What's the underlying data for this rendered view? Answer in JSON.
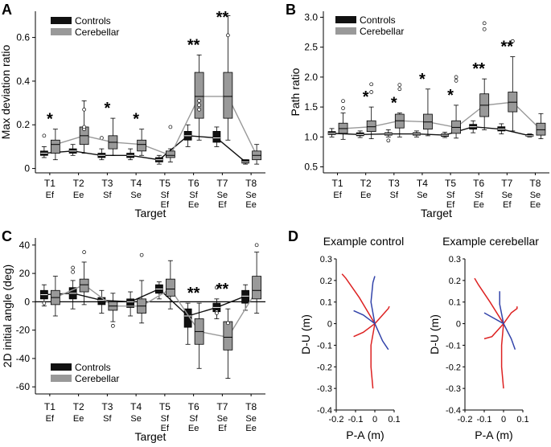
{
  "colors": {
    "controls": "#111111",
    "cerebellar": "#999999",
    "red": "#dd2222",
    "blue": "#3344aa"
  },
  "panels": {
    "A": "A",
    "B": "B",
    "C": "C",
    "D": "D"
  },
  "x_axis": {
    "label": "Target",
    "targets": [
      {
        "name": "T1",
        "lines": [
          "Ef"
        ]
      },
      {
        "name": "T2",
        "lines": [
          "Ee"
        ]
      },
      {
        "name": "T3",
        "lines": [
          "Sf"
        ]
      },
      {
        "name": "T4",
        "lines": [
          "Se"
        ]
      },
      {
        "name": "T5",
        "lines": [
          "Sf",
          "Ef"
        ]
      },
      {
        "name": "T6",
        "lines": [
          "Sf",
          "Ee"
        ]
      },
      {
        "name": "T7",
        "lines": [
          "Se",
          "Ef"
        ]
      },
      {
        "name": "T8",
        "lines": [
          "Se",
          "Ee"
        ]
      }
    ]
  },
  "legend": {
    "controls": "Controls",
    "cerebellar": "Cerebellar"
  },
  "chart_data": [
    {
      "panel": "A",
      "type": "box",
      "ylabel": "Max deviation ratio",
      "xlabel": "Target",
      "ylim": [
        -0.02,
        0.72
      ],
      "yticks": [
        0,
        0.2,
        0.4,
        0.6
      ],
      "ytick_labels": [
        "0",
        "0.2",
        "0.4",
        "0.6"
      ],
      "significance": [
        "*",
        "",
        "*",
        "*",
        "",
        "**",
        "**",
        ""
      ],
      "series": [
        {
          "name": "Controls",
          "medians": [
            0.07,
            0.08,
            0.06,
            0.06,
            0.04,
            0.15,
            0.14,
            0.03
          ],
          "q1": [
            0.06,
            0.07,
            0.05,
            0.05,
            0.03,
            0.13,
            0.12,
            0.025
          ],
          "q3": [
            0.08,
            0.09,
            0.07,
            0.07,
            0.05,
            0.17,
            0.17,
            0.04
          ],
          "wlo": [
            0.05,
            0.06,
            0.04,
            0.04,
            0.02,
            0.1,
            0.1,
            0.02
          ],
          "whi": [
            0.1,
            0.11,
            0.09,
            0.09,
            0.06,
            0.2,
            0.19,
            0.04
          ],
          "outliers": [
            [
              0.15
            ],
            [],
            [
              0.14
            ],
            [],
            [],
            [],
            [],
            []
          ]
        },
        {
          "name": "Cerebellar",
          "medians": [
            0.11,
            0.15,
            0.12,
            0.11,
            0.06,
            0.33,
            0.33,
            0.06
          ],
          "q1": [
            0.07,
            0.11,
            0.09,
            0.08,
            0.05,
            0.23,
            0.23,
            0.04
          ],
          "q3": [
            0.13,
            0.19,
            0.15,
            0.13,
            0.08,
            0.44,
            0.44,
            0.08
          ],
          "wlo": [
            0.04,
            0.07,
            0.06,
            0.06,
            0.03,
            0.13,
            0.13,
            0.02
          ],
          "whi": [
            0.18,
            0.31,
            0.23,
            0.18,
            0.09,
            0.52,
            0.7,
            0.11
          ],
          "outliers": [
            [],
            [
              0.27,
              0.18,
              0.19
            ],
            [],
            [],
            [
              0.19
            ],
            [
              0.29,
              0.31,
              0.27
            ],
            [
              0.61
            ],
            []
          ]
        }
      ]
    },
    {
      "panel": "B",
      "type": "box",
      "ylabel": "Path ratio",
      "xlabel": "Target",
      "ylim": [
        0.4,
        3.1
      ],
      "yticks": [
        0.5,
        1.0,
        1.5,
        2.0,
        2.5,
        3.0
      ],
      "ytick_labels": [
        "0.5",
        "1.0",
        "1.5",
        "2.0",
        "2.5",
        "3.0"
      ],
      "significance": [
        "",
        "*",
        "*",
        "*",
        "*",
        "**",
        "**",
        ""
      ],
      "series": [
        {
          "name": "Controls",
          "medians": [
            1.06,
            1.04,
            1.05,
            1.05,
            1.03,
            1.17,
            1.13,
            1.02
          ],
          "q1": [
            1.04,
            1.02,
            1.03,
            1.03,
            1.01,
            1.13,
            1.1,
            1.01
          ],
          "q3": [
            1.09,
            1.07,
            1.07,
            1.07,
            1.05,
            1.21,
            1.17,
            1.04
          ],
          "wlo": [
            1.0,
            0.99,
            1.0,
            1.0,
            0.99,
            1.07,
            1.05,
            1.0
          ],
          "whi": [
            1.14,
            1.1,
            1.12,
            1.1,
            1.08,
            1.27,
            1.22,
            1.05
          ],
          "outliers": [
            [],
            [],
            [
              0.94
            ],
            [],
            [],
            [],
            [],
            []
          ]
        },
        {
          "name": "Cerebellar",
          "medians": [
            1.14,
            1.17,
            1.27,
            1.25,
            1.16,
            1.53,
            1.58,
            1.12
          ],
          "q1": [
            1.06,
            1.09,
            1.15,
            1.13,
            1.06,
            1.34,
            1.42,
            1.03
          ],
          "q3": [
            1.23,
            1.27,
            1.38,
            1.38,
            1.27,
            1.72,
            1.75,
            1.23
          ],
          "wlo": [
            0.96,
            0.97,
            1.0,
            1.02,
            0.98,
            1.12,
            1.1,
            0.97
          ],
          "whi": [
            1.4,
            1.5,
            1.4,
            1.8,
            1.53,
            1.97,
            2.34,
            1.39
          ],
          "outliers": [
            [
              1.48,
              1.6
            ],
            [
              1.75,
              1.88
            ],
            [
              1.8,
              1.87
            ],
            [],
            [
              1.94,
              2.0
            ],
            [
              2.8,
              2.9
            ],
            [
              2.6
            ],
            []
          ]
        }
      ]
    },
    {
      "panel": "C",
      "type": "box",
      "ylabel": "2D initial angle (deg)",
      "xlabel": "Target",
      "ylim": [
        -65,
        45
      ],
      "yticks": [
        40,
        20,
        0,
        -20,
        -40,
        -60
      ],
      "ytick_labels": [
        "40",
        "20",
        "0",
        "-20",
        "-40",
        "-60"
      ],
      "significance": [
        "",
        "",
        "",
        "",
        "",
        "**",
        "**",
        ""
      ],
      "series": [
        {
          "name": "Controls",
          "medians": [
            5,
            6,
            1,
            0,
            9,
            -10,
            -4,
            4
          ],
          "q1": [
            2,
            2,
            -2,
            -4,
            6,
            -18,
            -7,
            -1
          ],
          "q3": [
            8,
            10,
            3,
            2,
            12,
            -5,
            -1,
            8
          ],
          "wlo": [
            -3,
            -5,
            -8,
            -10,
            2,
            -30,
            -12,
            -6
          ],
          "whi": [
            12,
            15,
            8,
            7,
            14,
            -1,
            2,
            12
          ],
          "outliers": [
            [
              -1
            ],
            [
              21,
              24
            ],
            [],
            [],
            [],
            [],
            [
              10,
              -7,
              -8
            ],
            []
          ]
        },
        {
          "name": "Cerebellar",
          "medians": [
            3,
            12,
            -3,
            -3,
            9,
            -21,
            -25,
            8
          ],
          "q1": [
            -2,
            7,
            -6,
            -8,
            4,
            -30,
            -34,
            2
          ],
          "q3": [
            8,
            16,
            0,
            2,
            16,
            -12,
            -14,
            18
          ],
          "wlo": [
            -10,
            -2,
            -14,
            -15,
            -5,
            -47,
            -54,
            -8
          ],
          "whi": [
            18,
            28,
            6,
            15,
            29,
            -1,
            -5,
            35
          ],
          "outliers": [
            [],
            [
              35
            ],
            [
              -17
            ],
            [
              33
            ],
            [],
            [],
            [
              -15
            ],
            [
              40
            ]
          ]
        }
      ]
    }
  ],
  "panel_d": {
    "ylabel": "D-U (m)",
    "xlabel": "P-A (m)",
    "xticks": [
      "-0.2",
      "-0.1",
      "0",
      "0.1"
    ],
    "yticks": [
      "0.3",
      "0.2",
      "0.1",
      "0",
      "-0.1",
      "-0.2",
      "-0.3",
      "-0.4"
    ],
    "examples": [
      {
        "title": "Example control"
      },
      {
        "title": "Example cerebellar"
      }
    ]
  }
}
